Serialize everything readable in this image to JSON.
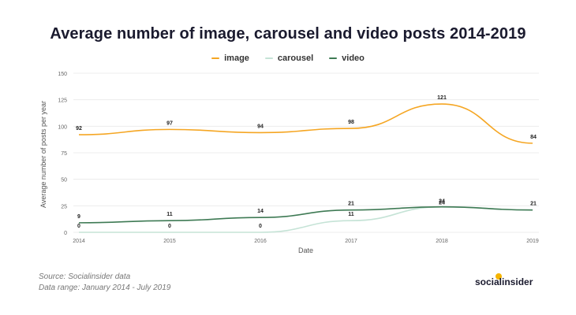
{
  "chart_data": {
    "type": "line",
    "title": "Average number of image, carousel and video posts 2014-2019",
    "xlabel": "Date",
    "ylabel": "Average number of posts per year",
    "x": [
      "2014",
      "2015",
      "2016",
      "2017",
      "2018",
      "2019"
    ],
    "ylim": [
      0,
      150
    ],
    "yticks": [
      "0",
      "25",
      "50",
      "75",
      "100",
      "125",
      "150"
    ],
    "grid": true,
    "legend_position": "top",
    "series": [
      {
        "name": "image",
        "color": "#f5a623",
        "values": [
          92,
          97,
          94,
          98,
          121,
          84
        ]
      },
      {
        "name": "carousel",
        "color": "#c5e3d6",
        "values": [
          0,
          0,
          0,
          11,
          24,
          21
        ]
      },
      {
        "name": "video",
        "color": "#3e7a54",
        "values": [
          9,
          11,
          14,
          21,
          24,
          21
        ]
      }
    ]
  },
  "footer": {
    "source": "Source: Socialinsider data",
    "range": "Data range: January 2014 - July 2019"
  },
  "brand": {
    "name": "socialinsider",
    "logo_color": "#f5b400"
  }
}
